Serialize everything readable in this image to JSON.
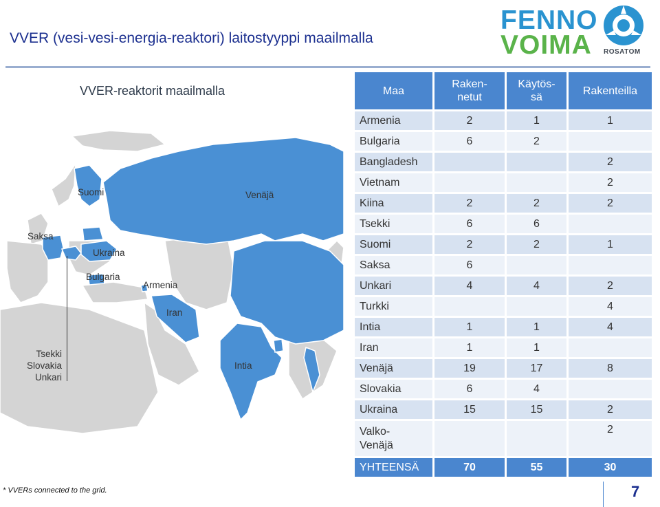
{
  "title": "VVER (vesi-vesi-energia-reaktori) laitostyyppi maailmalla",
  "logo": {
    "line1": "FENNO",
    "line2": "VOIMA",
    "partner": "ROSATOM"
  },
  "map": {
    "title": "VVER-reaktorit maailmalla",
    "labels": {
      "suomi": "Suomi",
      "venaja": "Venäjä",
      "saksa": "Saksa",
      "ukraina": "Ukraina",
      "bulgaria": "Bulgaria",
      "armenia": "Armenia",
      "iran": "Iran",
      "intia": "Intia"
    },
    "cluster_labels": [
      "Tsekki",
      "Slovakia",
      "Unkari"
    ],
    "colors": {
      "highlight": "#4a90d4",
      "land": "#d4d4d4",
      "border": "#ffffff"
    }
  },
  "table": {
    "headers": {
      "maa": "Maa",
      "rakennetut_1": "Raken-",
      "rakennetut_2": "netut",
      "kaytossa_1": "Käytös-",
      "kaytossa_2": "sä",
      "rakenteilla": "Rakenteilla"
    },
    "rows": [
      {
        "country": "Armenia",
        "built": "2",
        "operating": "1",
        "construction": "1"
      },
      {
        "country": "Bulgaria",
        "built": "6",
        "operating": "2",
        "construction": ""
      },
      {
        "country": "Bangladesh",
        "built": "",
        "operating": "",
        "construction": "2"
      },
      {
        "country": "Vietnam",
        "built": "",
        "operating": "",
        "construction": "2"
      },
      {
        "country": "Kiina",
        "built": "2",
        "operating": "2",
        "construction": "2"
      },
      {
        "country": "Tsekki",
        "built": "6",
        "operating": "6",
        "construction": ""
      },
      {
        "country": "Suomi",
        "built": "2",
        "operating": "2",
        "construction": "1"
      },
      {
        "country": "Saksa",
        "built": "6",
        "operating": "",
        "construction": ""
      },
      {
        "country": "Unkari",
        "built": "4",
        "operating": "4",
        "construction": "2"
      },
      {
        "country": "Turkki",
        "built": "",
        "operating": "",
        "construction": "4"
      },
      {
        "country": "Intia",
        "built": "1",
        "operating": "1",
        "construction": "4"
      },
      {
        "country": "Iran",
        "built": "1",
        "operating": "1",
        "construction": ""
      },
      {
        "country": "Venäjä",
        "built": "19",
        "operating": "17",
        "construction": "8"
      },
      {
        "country": "Slovakia",
        "built": "6",
        "operating": "4",
        "construction": ""
      },
      {
        "country": "Ukraina",
        "built": "15",
        "operating": "15",
        "construction": "2"
      },
      {
        "country_1": "Valko-",
        "country_2": "Venäjä",
        "built": "",
        "operating": "",
        "construction": "2"
      }
    ],
    "total": {
      "label": "YHTEENSÄ",
      "built": "70",
      "operating": "55",
      "construction": "30"
    },
    "colors": {
      "header": "#4a86cf",
      "row_odd": "#d7e2f1",
      "row_even": "#edf2f9"
    }
  },
  "footnote": "* VVERs connected to the grid.",
  "page_number": "7"
}
